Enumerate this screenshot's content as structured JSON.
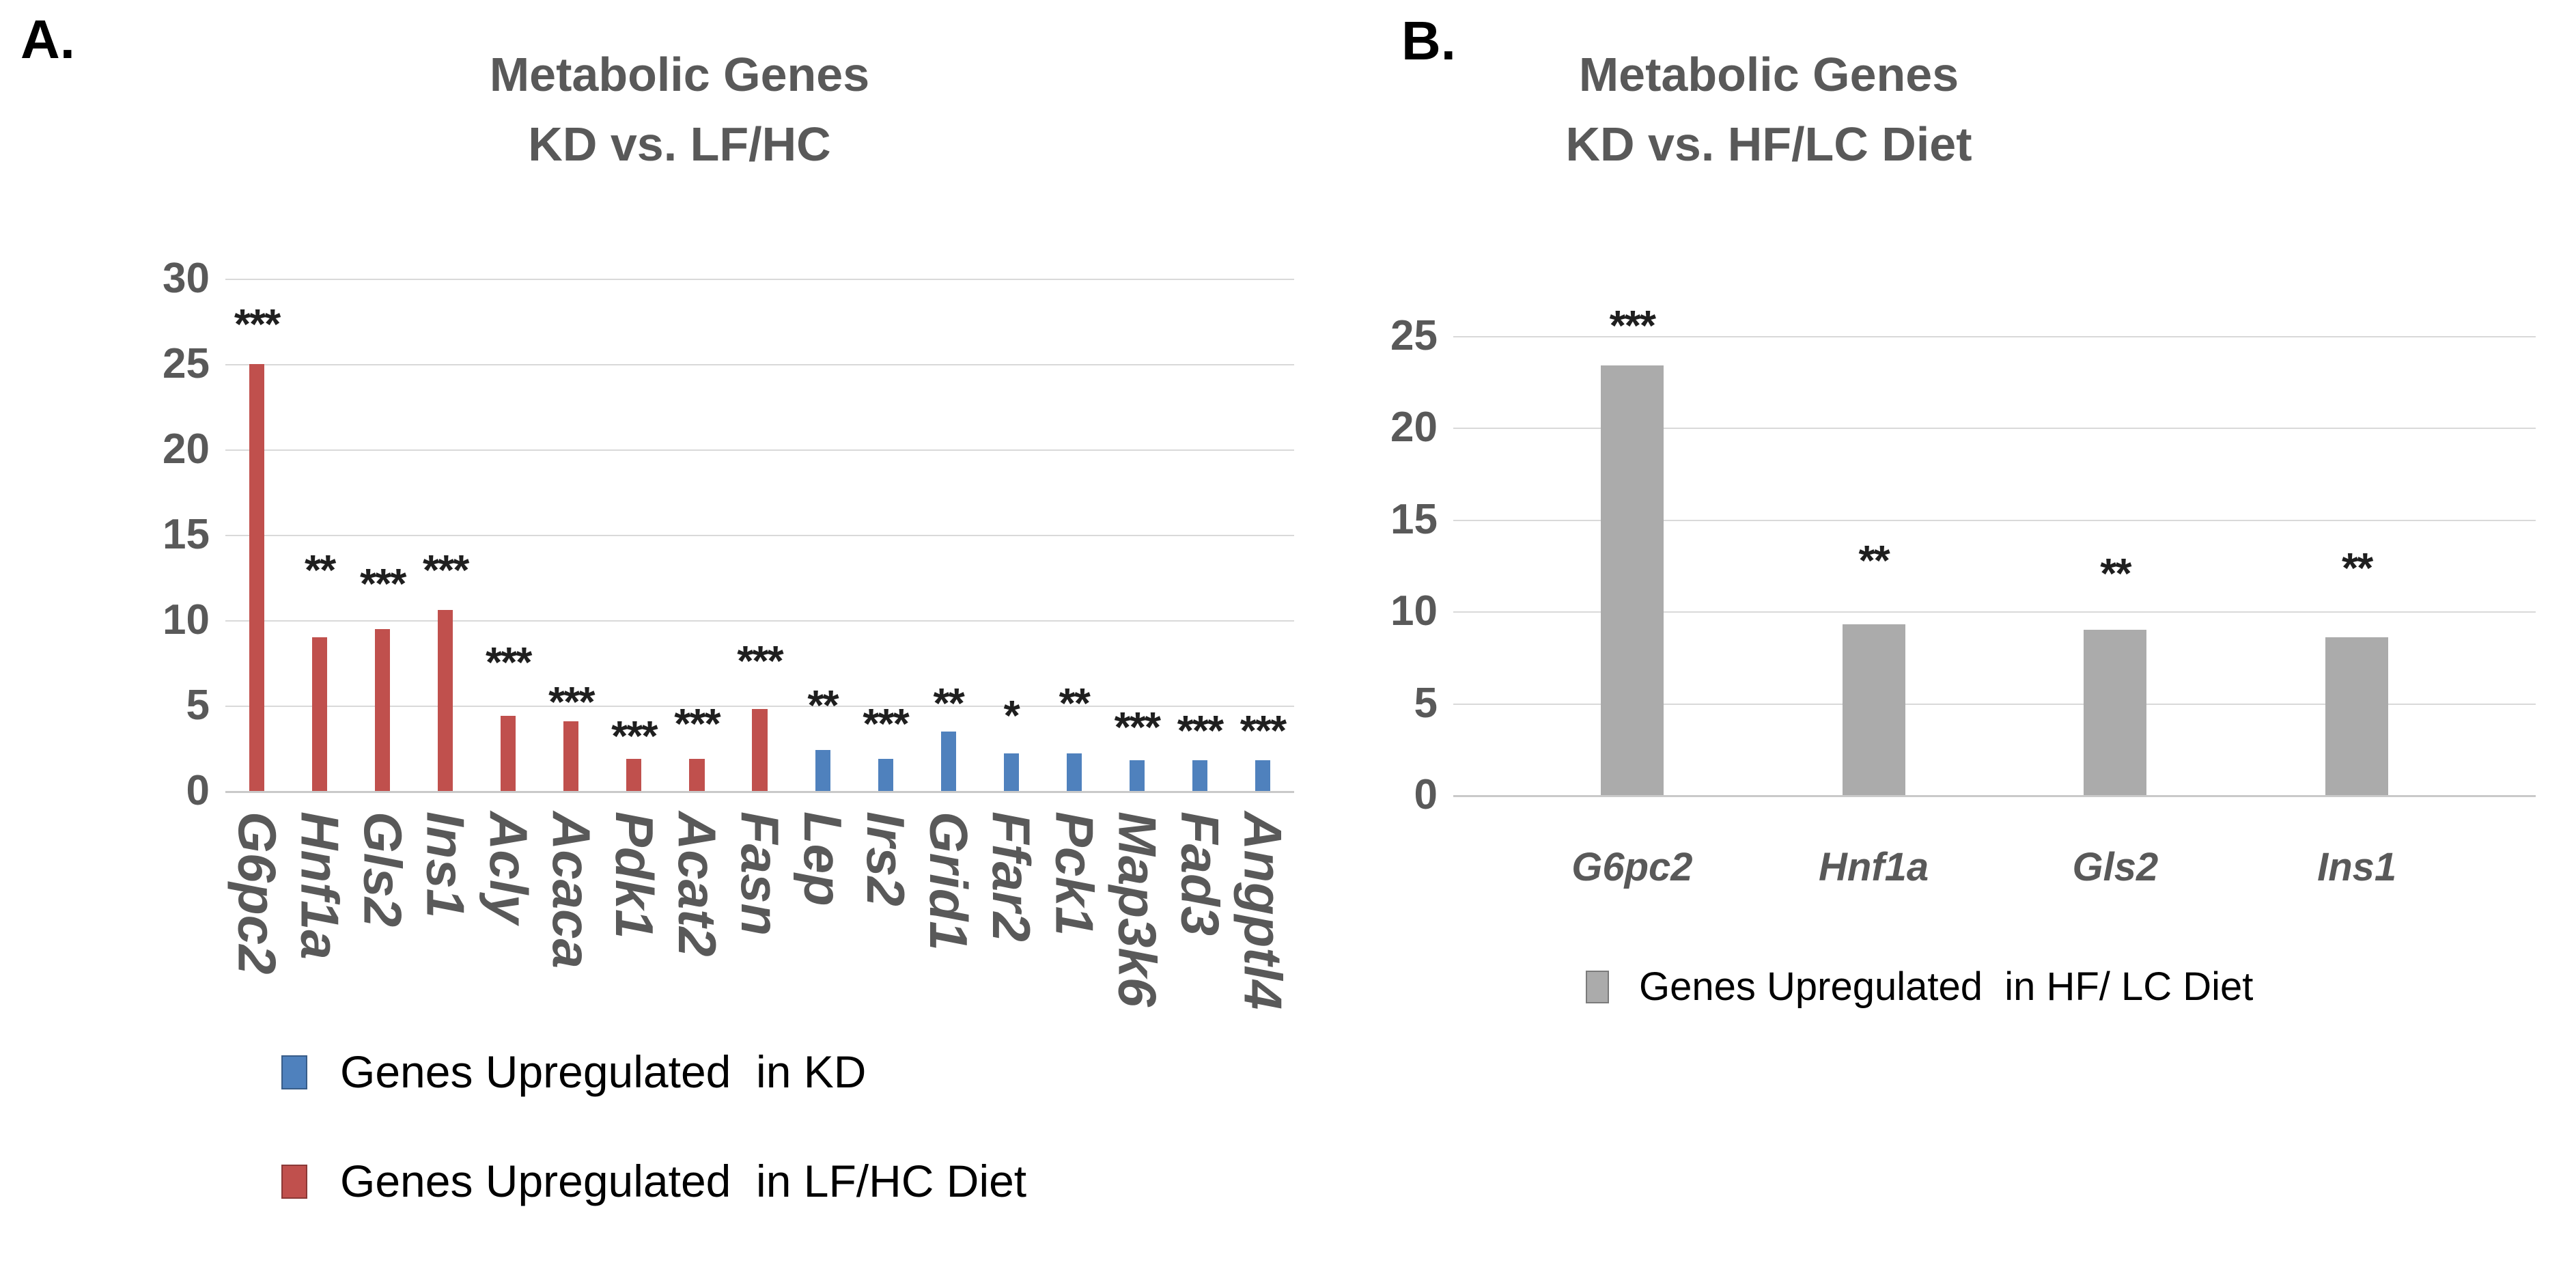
{
  "panels": [
    {
      "id": "A",
      "letter": "A.",
      "title_lines": [
        "Metabolic Genes",
        "KD vs. LF/HC"
      ],
      "legend": [
        {
          "label": "Genes Upregulated  in KD",
          "color": "#4f81bd"
        },
        {
          "label": "Genes Upregulated  in LF/HC Diet",
          "color": "#c0504d"
        }
      ]
    },
    {
      "id": "B",
      "letter": "B.",
      "title_lines": [
        "Metabolic Genes",
        "KD vs. HF/LC Diet"
      ],
      "legend": [
        {
          "label": "Genes Upregulated  in HF/ LC Diet",
          "color": "#ababab"
        }
      ]
    }
  ],
  "chart_data": [
    {
      "type": "bar",
      "title": "Metabolic Genes KD vs. LF/HC",
      "xlabel": "",
      "ylabel": "",
      "ylim": [
        0,
        30
      ],
      "yticks": [
        0,
        5,
        10,
        15,
        20,
        25,
        30
      ],
      "grid": true,
      "legend_position": "below-left",
      "categories": [
        "G6pc2",
        "Hnf1a",
        "Gls2",
        "Ins1",
        "Acly",
        "Acaca",
        "Pdk1",
        "Acat2",
        "Fasn",
        "Lep",
        "Irs2",
        "Grid1",
        "Ffar2",
        "Pck1",
        "Map3k6",
        "Fad3",
        "Angptl4"
      ],
      "values": [
        25.0,
        9.0,
        9.5,
        10.6,
        4.4,
        4.1,
        1.9,
        1.9,
        4.8,
        2.4,
        1.9,
        3.5,
        2.2,
        2.2,
        1.8,
        1.8,
        1.8
      ],
      "colors": [
        "#c0504d",
        "#c0504d",
        "#c0504d",
        "#c0504d",
        "#c0504d",
        "#c0504d",
        "#c0504d",
        "#c0504d",
        "#c0504d",
        "#4f81bd",
        "#4f81bd",
        "#4f81bd",
        "#4f81bd",
        "#4f81bd",
        "#4f81bd",
        "#4f81bd",
        "#4f81bd"
      ],
      "significance": [
        "***",
        "**",
        "***",
        "***",
        "***",
        "***",
        "***",
        "***",
        "***",
        "**",
        "***",
        "**",
        "*",
        "**",
        "***",
        "***",
        "***"
      ],
      "sig_y": [
        27.8,
        13.4,
        12.6,
        13.4,
        8.0,
        5.7,
        3.7,
        4.4,
        8.1,
        5.5,
        4.4,
        5.6,
        4.9,
        5.6,
        4.2,
        4.0,
        4.0
      ],
      "series": [
        {
          "name": "Genes Upregulated in LF/HC Diet",
          "color": "#c0504d",
          "categories": [
            "G6pc2",
            "Hnf1a",
            "Gls2",
            "Ins1",
            "Acly",
            "Acaca",
            "Pdk1",
            "Acat2",
            "Fasn"
          ]
        },
        {
          "name": "Genes Upregulated in KD",
          "color": "#4f81bd",
          "categories": [
            "Lep",
            "Irs2",
            "Grid1",
            "Ffar2",
            "Pck1",
            "Map3k6",
            "Fad3",
            "Angptl4"
          ]
        }
      ]
    },
    {
      "type": "bar",
      "title": "Metabolic Genes KD vs. HF/LC Diet",
      "xlabel": "",
      "ylabel": "",
      "ylim": [
        0,
        25
      ],
      "yticks": [
        0,
        5,
        10,
        15,
        20,
        25
      ],
      "grid": true,
      "legend_position": "below-center",
      "categories": [
        "G6pc2",
        "Hnf1a",
        "Gls2",
        "Ins1"
      ],
      "values": [
        23.4,
        9.3,
        9.0,
        8.6
      ],
      "colors": [
        "#ababab",
        "#ababab",
        "#ababab",
        "#ababab"
      ],
      "significance": [
        "***",
        "**",
        "**",
        "**"
      ],
      "sig_y": [
        26.0,
        13.2,
        12.5,
        12.8
      ],
      "series": [
        {
          "name": "Genes Upregulated in HF/ LC Diet",
          "color": "#ababab",
          "categories": [
            "G6pc2",
            "Hnf1a",
            "Gls2",
            "Ins1"
          ]
        }
      ]
    }
  ]
}
